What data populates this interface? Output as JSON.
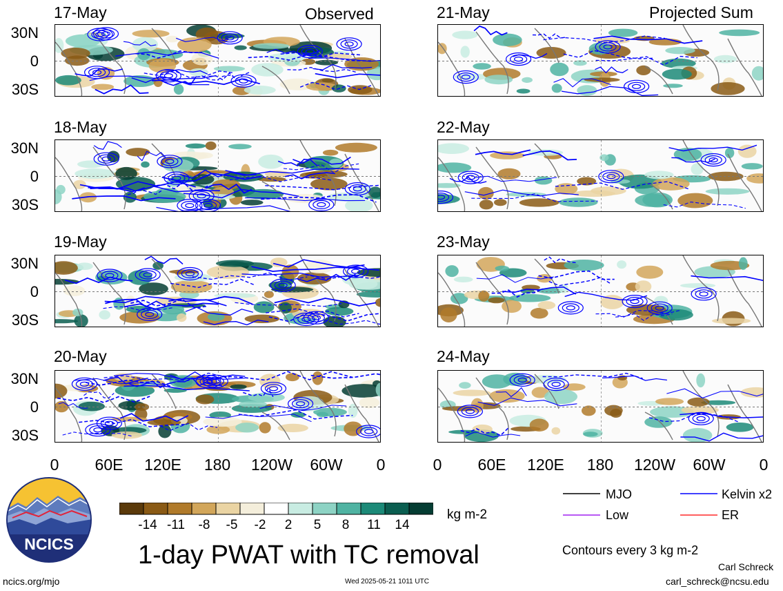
{
  "title": "1-day PWAT with TC removal",
  "panel_groups": {
    "left": "Observed",
    "right": "Projected Sum"
  },
  "chart_data": {
    "type": "heatmap",
    "title": "1-day PWAT with TC removal",
    "units": "kg m-2",
    "panels": [
      {
        "date": "17-May",
        "group": "Observed"
      },
      {
        "date": "18-May",
        "group": "Observed"
      },
      {
        "date": "19-May",
        "group": "Observed"
      },
      {
        "date": "20-May",
        "group": "Observed"
      },
      {
        "date": "21-May",
        "group": "Projected Sum"
      },
      {
        "date": "22-May",
        "group": "Projected Sum"
      },
      {
        "date": "23-May",
        "group": "Projected Sum"
      },
      {
        "date": "24-May",
        "group": "Projected Sum"
      }
    ],
    "y_ticks": [
      "30N",
      "0",
      "30S"
    ],
    "x_ticks": [
      "0",
      "60E",
      "120E",
      "180",
      "120W",
      "60W",
      "0"
    ],
    "colorbar": {
      "levels": [
        "-14",
        "-11",
        "-8",
        "-5",
        "-2",
        "2",
        "5",
        "8",
        "11",
        "14"
      ],
      "colors": [
        "#5b3a0a",
        "#8a5a15",
        "#b07a2a",
        "#d2a65a",
        "#ead4a3",
        "#f4eedb",
        "#ffffff",
        "#c8ece2",
        "#8dd3c4",
        "#4fb3a2",
        "#1c8a78",
        "#0b5e50",
        "#053d33"
      ]
    },
    "contours": "Contours every 3 kg m-2",
    "legend": [
      {
        "label": "MJO",
        "color": "#000000"
      },
      {
        "label": "Kelvin x2",
        "color": "#0000ff"
      },
      {
        "label": "Low",
        "color": "#a020f0"
      },
      {
        "label": "ER",
        "color": "#ff2a2a"
      }
    ]
  },
  "footer": {
    "left": "ncics.org/mjo",
    "center": "Wed 2025-05-21 1011 UTC",
    "author": "Carl Schreck",
    "email": "carl_schreck@ncsu.edu"
  },
  "logo_text": "NCICS"
}
